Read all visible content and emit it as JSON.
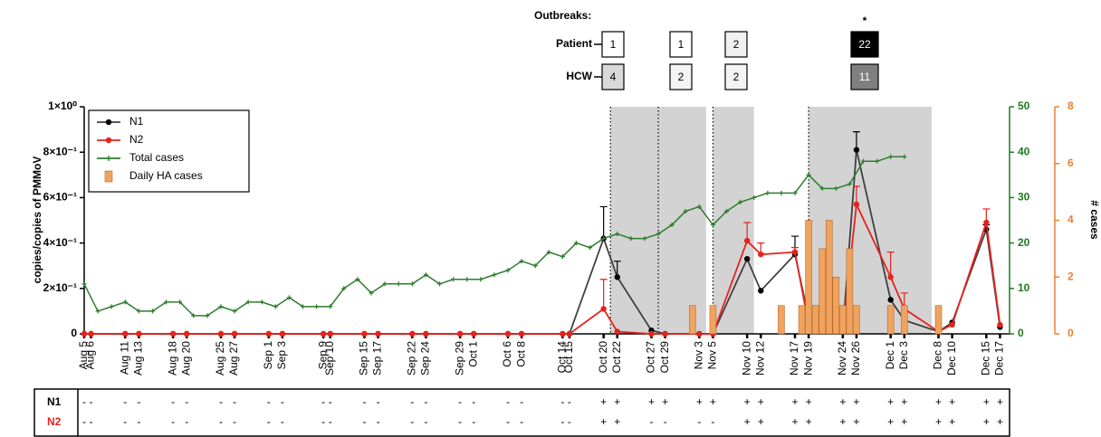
{
  "chart_data": {
    "type": "line",
    "ylabel": "copies/copies of PMMoV",
    "y3label": "# cases",
    "outbreaks_title": "Outbreaks:",
    "outbreak_row_labels": [
      "Patient",
      "HCW"
    ],
    "outbreaks": [
      {
        "start": "Oct 21",
        "end": "Oct 28",
        "patient": 1,
        "hcw": 4,
        "patient_color": "#ffffff",
        "hcw_color": "#d9d9d9"
      },
      {
        "start": "Oct 28",
        "end": "Nov 4",
        "patient": 1,
        "hcw": 2,
        "patient_color": "#ffffff",
        "hcw_color": "#f4f4f4"
      },
      {
        "start": "Nov 5",
        "end": "Nov 11",
        "patient": 2,
        "hcw": 2,
        "patient_color": "#f0f0f0",
        "hcw_color": "#f4f4f4"
      },
      {
        "start": "Nov 19",
        "end": "Dec 7",
        "patient": 22,
        "hcw": 11,
        "patient_color": "#000000",
        "hcw_color": "#7f7f7f",
        "note": "*"
      }
    ],
    "shade_color": "#d3d3d3",
    "x": [
      "Aug 5",
      "Aug 6",
      "Aug 11",
      "Aug 13",
      "Aug 18",
      "Aug 20",
      "Aug 25",
      "Aug 27",
      "Sep 1",
      "Sep 3",
      "Sep 9",
      "Sep 10",
      "Sep 15",
      "Sep 17",
      "Sep 22",
      "Sep 24",
      "Sep 29",
      "Oct 1",
      "Oct 6",
      "Oct 8",
      "Oct 14",
      "Oct 15",
      "Oct 20",
      "Oct 22",
      "Oct 27",
      "Oct 29",
      "Nov 3",
      "Nov 5",
      "Nov 10",
      "Nov 12",
      "Nov 17",
      "Nov 19",
      "Nov 24",
      "Nov 26",
      "Dec 1",
      "Dec 3",
      "Dec 8",
      "Dec 10",
      "Dec 15",
      "Dec 17"
    ],
    "xlim": [
      "Aug 5",
      "Dec 18"
    ],
    "ylim": [
      0,
      1
    ],
    "yticks": [
      0,
      {
        "value": 0.2,
        "label": "2×10⁻¹"
      },
      {
        "value": 0.4,
        "label": "4×10⁻¹"
      },
      {
        "value": 0.6,
        "label": "6×10⁻¹"
      },
      {
        "value": 0.8,
        "label": "8×10⁻¹"
      },
      {
        "value": 1,
        "label": "1×10⁰"
      }
    ],
    "y2lim": [
      0,
      50
    ],
    "y2ticks": [
      0,
      10,
      20,
      30,
      40,
      50
    ],
    "y2color": "#1f7a1f",
    "y3lim": [
      0,
      8
    ],
    "y3ticks": [
      0,
      2,
      4,
      6,
      8
    ],
    "y3color": "#ed7d31",
    "legend": "upper left",
    "series": [
      {
        "name": "N1",
        "color": "#000000",
        "line_color": "#404040",
        "values": [
          0,
          0,
          0,
          0,
          0,
          0,
          0,
          0,
          0,
          0,
          0,
          0,
          0,
          0,
          0,
          0,
          0,
          0,
          0,
          0,
          0,
          0,
          0.42,
          0.25,
          0.015,
          0,
          0,
          0,
          0.33,
          0.19,
          0.35,
          0.07,
          0.01,
          0.81,
          0.15,
          0.06,
          0.01,
          0.05,
          0.46,
          0.03
        ],
        "errors": [
          null,
          null,
          null,
          null,
          null,
          null,
          null,
          null,
          null,
          null,
          null,
          null,
          null,
          null,
          null,
          null,
          null,
          null,
          null,
          null,
          null,
          null,
          0.14,
          0.07,
          null,
          null,
          null,
          null,
          null,
          null,
          0.08,
          null,
          null,
          0.08,
          null,
          null,
          null,
          null,
          0.02,
          null
        ]
      },
      {
        "name": "N2",
        "color": "#e8211d",
        "line_color": "#e8211d",
        "values": [
          0,
          0,
          0,
          0,
          0,
          0,
          0,
          0,
          0,
          0,
          0,
          0,
          0,
          0,
          0,
          0,
          0,
          0,
          0,
          0,
          0,
          0,
          0.11,
          0.01,
          0,
          0,
          0,
          0,
          0.41,
          0.35,
          0.36,
          0.04,
          0.01,
          0.57,
          0.25,
          0.11,
          0.01,
          0.04,
          0.49,
          0.04
        ],
        "errors": [
          null,
          null,
          null,
          null,
          null,
          null,
          null,
          null,
          null,
          null,
          null,
          null,
          null,
          null,
          null,
          null,
          null,
          null,
          null,
          null,
          null,
          null,
          0.13,
          null,
          null,
          null,
          null,
          null,
          0.08,
          0.05,
          0.02,
          null,
          null,
          0.08,
          0.11,
          0.07,
          null,
          null,
          0.06,
          null
        ]
      },
      {
        "name": "Total cases",
        "color": "#2e7d2e",
        "axis": "y2",
        "x": [
          "Aug 5",
          "Aug 7",
          "Aug 9",
          "Aug 11",
          "Aug 13",
          "Aug 15",
          "Aug 17",
          "Aug 19",
          "Aug 21",
          "Aug 23",
          "Aug 25",
          "Aug 27",
          "Aug 29",
          "Aug 31",
          "Sep 2",
          "Sep 4",
          "Sep 6",
          "Sep 8",
          "Sep 10",
          "Sep 12",
          "Sep 14",
          "Sep 16",
          "Sep 18",
          "Sep 20",
          "Sep 22",
          "Sep 24",
          "Sep 26",
          "Sep 28",
          "Sep 30",
          "Oct 2",
          "Oct 4",
          "Oct 6",
          "Oct 8",
          "Oct 10",
          "Oct 12",
          "Oct 14",
          "Oct 16",
          "Oct 18",
          "Oct 20",
          "Oct 22",
          "Oct 24",
          "Oct 26",
          "Oct 28",
          "Oct 30",
          "Nov 1",
          "Nov 3",
          "Nov 5",
          "Nov 7",
          "Nov 9",
          "Nov 11",
          "Nov 13",
          "Nov 15",
          "Nov 17",
          "Nov 19",
          "Nov 21",
          "Nov 23",
          "Nov 25",
          "Nov 27",
          "Nov 29",
          "Dec 1",
          "Dec 3"
        ],
        "values": [
          11,
          5,
          6,
          7,
          5,
          5,
          7,
          7,
          4,
          4,
          6,
          5,
          7,
          7,
          6,
          8,
          6,
          6,
          6,
          10,
          12,
          9,
          11,
          11,
          11,
          13,
          11,
          12,
          12,
          12,
          13,
          14,
          16,
          15,
          18,
          17,
          20,
          19,
          21,
          22,
          21,
          21,
          22,
          24,
          27,
          28,
          24,
          27,
          29,
          30,
          31,
          31,
          31,
          35,
          32,
          32,
          33,
          38,
          38,
          39,
          39
        ]
      },
      {
        "name": "Daily HA cases",
        "type": "bar",
        "color": "#f0a35e",
        "edge": "#b86a2a",
        "axis": "y3",
        "x": [
          "Nov 2",
          "Nov 5",
          "Nov 15",
          "Nov 18",
          "Nov 19",
          "Nov 20",
          "Nov 21",
          "Nov 22",
          "Nov 23",
          "Nov 24",
          "Nov 25",
          "Nov 26",
          "Dec 1",
          "Dec 3",
          "Dec 8"
        ],
        "values": [
          1,
          1,
          1,
          1,
          4,
          1,
          3,
          4,
          2,
          1,
          3,
          1,
          1,
          1,
          1
        ]
      }
    ],
    "detection": {
      "labels": [
        "N1",
        "N2"
      ],
      "label_colors": [
        "#000000",
        "#e8211d"
      ],
      "rows": [
        [
          "-",
          "-",
          "-",
          "-",
          "-",
          "-",
          "-",
          "-",
          "-",
          "-",
          "-",
          "-",
          "-",
          "-",
          "-",
          "-",
          "-",
          "-",
          "-",
          "-",
          "-",
          "-",
          "+",
          "+",
          "+",
          "+",
          "+",
          "+",
          "+",
          "+",
          "+",
          "+",
          "+",
          "+",
          "+",
          "+",
          "+",
          "+",
          "+",
          "+"
        ],
        [
          "-",
          "-",
          "-",
          "-",
          "-",
          "-",
          "-",
          "-",
          "-",
          "-",
          "-",
          "-",
          "-",
          "-",
          "-",
          "-",
          "-",
          "-",
          "-",
          "-",
          "-",
          "-",
          "+",
          "+",
          "-",
          "-",
          "-",
          "-",
          "+",
          "+",
          "+",
          "+",
          "+",
          "+",
          "+",
          "+",
          "+",
          "+",
          "+",
          "+"
        ]
      ]
    }
  }
}
